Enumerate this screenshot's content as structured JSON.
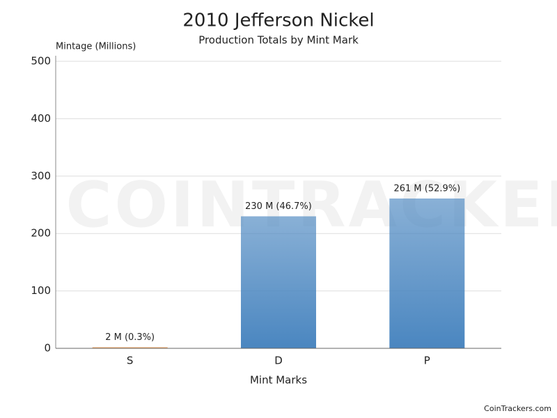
{
  "chart_data": {
    "type": "bar",
    "title": "2010 Jefferson Nickel",
    "subtitle": "Production Totals by Mint Mark",
    "y_label": "Mintage (Millions)",
    "x_label": "Mint Marks",
    "categories": [
      "S",
      "D",
      "P"
    ],
    "values": [
      2,
      230,
      261
    ],
    "value_labels": [
      "2 M (0.3%)",
      "230 M (46.7%)",
      "261 M (52.9%)"
    ],
    "colors": [
      "#e8964a",
      "#4a86c0",
      "#4a86c0"
    ],
    "ylim": [
      0,
      500
    ],
    "yticks": [
      0,
      100,
      200,
      300,
      400,
      500
    ],
    "grid": true,
    "watermark": "COINTRACKERS",
    "credit": "CoinTrackers.com"
  }
}
